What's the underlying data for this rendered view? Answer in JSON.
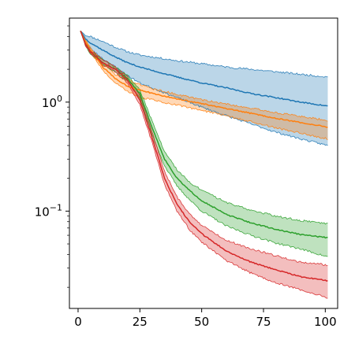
{
  "chart_data": {
    "type": "line",
    "title": "",
    "xlabel": "",
    "ylabel": "",
    "xlim": [
      -3.5,
      105
    ],
    "ylim": [
      0.0128,
      5.9
    ],
    "yscale": "log",
    "grid": false,
    "legend": "none",
    "x_ticks": [
      0,
      25,
      50,
      75,
      100
    ],
    "x_tick_labels": [
      "0",
      "25",
      "50",
      "75",
      "100"
    ],
    "y_major_ticks": [
      0.1,
      1
    ],
    "y_tick_labels": [
      {
        "base": "10",
        "exp": "−1"
      },
      {
        "base": "10",
        "exp": "0"
      }
    ],
    "series": [
      {
        "color": "#1f77b4",
        "x": [
          1,
          3,
          5,
          10,
          15,
          20,
          25,
          30,
          40,
          50,
          60,
          70,
          80,
          90,
          101
        ],
        "mean": [
          4.5,
          3.8,
          3.5,
          3.0,
          2.6,
          2.3,
          2.1,
          1.95,
          1.7,
          1.5,
          1.35,
          1.2,
          1.1,
          1.0,
          0.92
        ],
        "upper": [
          4.5,
          4.1,
          4.0,
          3.6,
          3.2,
          2.9,
          2.7,
          2.6,
          2.4,
          2.25,
          2.1,
          2.0,
          1.9,
          1.8,
          1.7
        ],
        "lower": [
          4.5,
          3.5,
          3.1,
          2.5,
          2.1,
          1.75,
          1.5,
          1.35,
          1.1,
          0.9,
          0.75,
          0.63,
          0.53,
          0.46,
          0.4
        ]
      },
      {
        "color": "#ff7f0e",
        "x": [
          1,
          3,
          5,
          10,
          15,
          20,
          25,
          30,
          40,
          50,
          60,
          70,
          80,
          90,
          101
        ],
        "mean": [
          4.5,
          3.6,
          3.0,
          2.1,
          1.65,
          1.4,
          1.3,
          1.2,
          1.07,
          0.97,
          0.87,
          0.79,
          0.71,
          0.65,
          0.59
        ],
        "upper": [
          4.5,
          3.7,
          3.2,
          2.3,
          1.8,
          1.6,
          1.45,
          1.33,
          1.18,
          1.05,
          0.96,
          0.88,
          0.8,
          0.74,
          0.68
        ],
        "lower": [
          4.5,
          3.5,
          2.9,
          1.95,
          1.5,
          1.25,
          1.1,
          1.05,
          0.94,
          0.84,
          0.75,
          0.66,
          0.58,
          0.52,
          0.46
        ]
      },
      {
        "color": "#2ca02c",
        "x": [
          1,
          3,
          5,
          10,
          15,
          20,
          25,
          30,
          35,
          40,
          45,
          50,
          60,
          70,
          80,
          90,
          101
        ],
        "mean": [
          4.5,
          3.4,
          2.9,
          2.3,
          2.0,
          1.65,
          1.2,
          0.58,
          0.3,
          0.2,
          0.155,
          0.125,
          0.093,
          0.078,
          0.068,
          0.061,
          0.057
        ],
        "upper": [
          4.5,
          3.5,
          3.0,
          2.45,
          2.1,
          1.75,
          1.3,
          0.66,
          0.35,
          0.24,
          0.185,
          0.155,
          0.12,
          0.102,
          0.09,
          0.082,
          0.077
        ],
        "lower": [
          4.5,
          3.3,
          2.8,
          2.2,
          1.9,
          1.55,
          1.1,
          0.5,
          0.26,
          0.17,
          0.128,
          0.1,
          0.073,
          0.06,
          0.051,
          0.045,
          0.038
        ]
      },
      {
        "color": "#d62728",
        "x": [
          1,
          3,
          5,
          10,
          15,
          20,
          25,
          30,
          35,
          40,
          45,
          50,
          60,
          70,
          80,
          90,
          101
        ],
        "mean": [
          4.5,
          3.4,
          2.9,
          2.3,
          2.0,
          1.6,
          1.05,
          0.47,
          0.2,
          0.115,
          0.08,
          0.062,
          0.043,
          0.034,
          0.029,
          0.025,
          0.023
        ],
        "upper": [
          4.5,
          3.5,
          3.0,
          2.45,
          2.1,
          1.7,
          1.15,
          0.53,
          0.23,
          0.135,
          0.095,
          0.074,
          0.054,
          0.045,
          0.039,
          0.034,
          0.032
        ],
        "lower": [
          4.5,
          3.3,
          2.8,
          2.2,
          1.9,
          1.5,
          0.95,
          0.42,
          0.175,
          0.1,
          0.068,
          0.052,
          0.035,
          0.027,
          0.022,
          0.019,
          0.016
        ]
      }
    ]
  }
}
